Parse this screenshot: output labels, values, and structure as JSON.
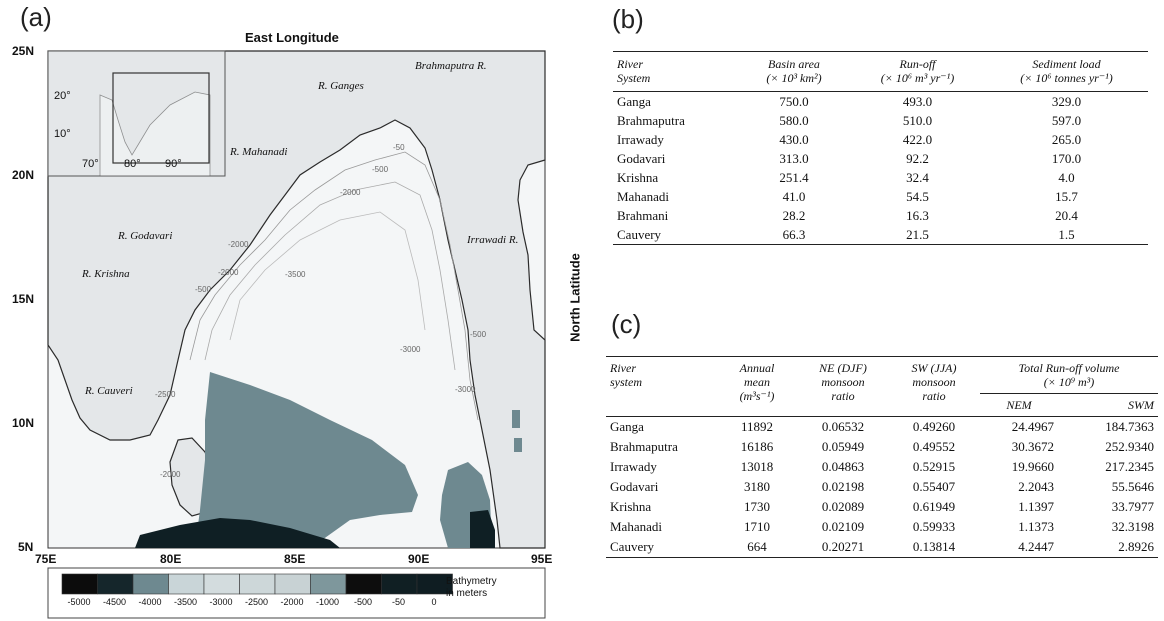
{
  "panel_labels": {
    "a": "(a)",
    "b": "(b)",
    "c": "(c)"
  },
  "map": {
    "top_title": "East Longitude",
    "right_title": "North Latitude",
    "lat_ticks": [
      "25N",
      "20N",
      "15N",
      "10N",
      "5N"
    ],
    "lon_ticks": [
      "75E",
      "80E",
      "85E",
      "90E",
      "95E"
    ],
    "rivers": [
      "Brahmaputra R.",
      "R. Ganges",
      "R. Mahanadi",
      "R. Godavari",
      "Irrawadi R.",
      "R. Krishna",
      "R. Cauveri"
    ],
    "inset_lat_ticks": [
      "20°",
      "10°"
    ],
    "inset_lon_ticks": [
      "70°",
      "80°",
      "90°"
    ],
    "contour_labels": [
      "-50",
      "-500",
      "-2000",
      "-3500",
      "-2000",
      "-3000",
      "-500",
      "-2000",
      "-500",
      "-3000",
      "-2500",
      "-2000"
    ],
    "colorbar": {
      "title_line1": "Bathymetry",
      "title_line2": "in meters",
      "labels": [
        "-5000",
        "-4500",
        "-4000",
        "-3500",
        "-3000",
        "-2500",
        "-2000",
        "-1000",
        "-500",
        "-50",
        "0"
      ],
      "colors": [
        "#0c0c0c",
        "#15262b",
        "#6e8990",
        "#c9d5d8",
        "#d3dcde",
        "#cdd7d9",
        "#c8d2d4",
        "#7e979c",
        "#0d0d0d",
        "#101f23",
        "#0f1d22"
      ]
    },
    "colors": {
      "land": "#e4e7e9",
      "ocean_light": "#f4f6f7",
      "deep": "#6e8990",
      "abyss": "#0f1f24"
    }
  },
  "table_b": {
    "headers": {
      "river_l1": "River",
      "river_l2": "System",
      "basin_l1": "Basin area",
      "basin_l2": "(× 10³ km²)",
      "runoff_l1": "Run-off",
      "runoff_l2": "(× 10⁶ m³ yr⁻¹)",
      "sed_l1": "Sediment load",
      "sed_l2": "(× 10⁶ tonnes yr⁻¹)"
    },
    "rows": [
      [
        "Ganga",
        "750.0",
        "493.0",
        "329.0"
      ],
      [
        "Brahmaputra",
        "580.0",
        "510.0",
        "597.0"
      ],
      [
        "Irrawady",
        "430.0",
        "422.0",
        "265.0"
      ],
      [
        "Godavari",
        "313.0",
        "92.2",
        "170.0"
      ],
      [
        "Krishna",
        "251.4",
        "32.4",
        "4.0"
      ],
      [
        "Mahanadi",
        "41.0",
        "54.5",
        "15.7"
      ],
      [
        "Brahmani",
        "28.2",
        "16.3",
        "20.4"
      ],
      [
        "Cauvery",
        "66.3",
        "21.5",
        "1.5"
      ]
    ]
  },
  "table_c": {
    "headers": {
      "river_l1": "River",
      "river_l2": "system",
      "annual_l1": "Annual",
      "annual_l2": "mean",
      "annual_l3": "(m³s⁻¹)",
      "ne_l1": "NE (DJF)",
      "ne_l2": "monsoon",
      "ne_l3": "ratio",
      "sw_l1": "SW (JJA)",
      "sw_l2": "monsoon",
      "sw_l3": "ratio",
      "total_l1": "Total Run-off volume",
      "total_l2": "(× 10⁹ m³)",
      "nem": "NEM",
      "swm": "SWM"
    },
    "rows": [
      [
        "Ganga",
        "11892",
        "0.06532",
        "0.49260",
        "24.4967",
        "184.7363"
      ],
      [
        "Brahmaputra",
        "16186",
        "0.05949",
        "0.49552",
        "30.3672",
        "252.9340"
      ],
      [
        "Irrawady",
        "13018",
        "0.04863",
        "0.52915",
        "19.9660",
        "217.2345"
      ],
      [
        "Godavari",
        "3180",
        "0.02198",
        "0.55407",
        "2.2043",
        "55.5646"
      ],
      [
        "Krishna",
        "1730",
        "0.02089",
        "0.61949",
        "1.1397",
        "33.7977"
      ],
      [
        "Mahanadi",
        "1710",
        "0.02109",
        "0.59933",
        "1.1373",
        "32.3198"
      ],
      [
        "Cauvery",
        "664",
        "0.20271",
        "0.13814",
        "4.2447",
        "2.8926"
      ]
    ]
  }
}
